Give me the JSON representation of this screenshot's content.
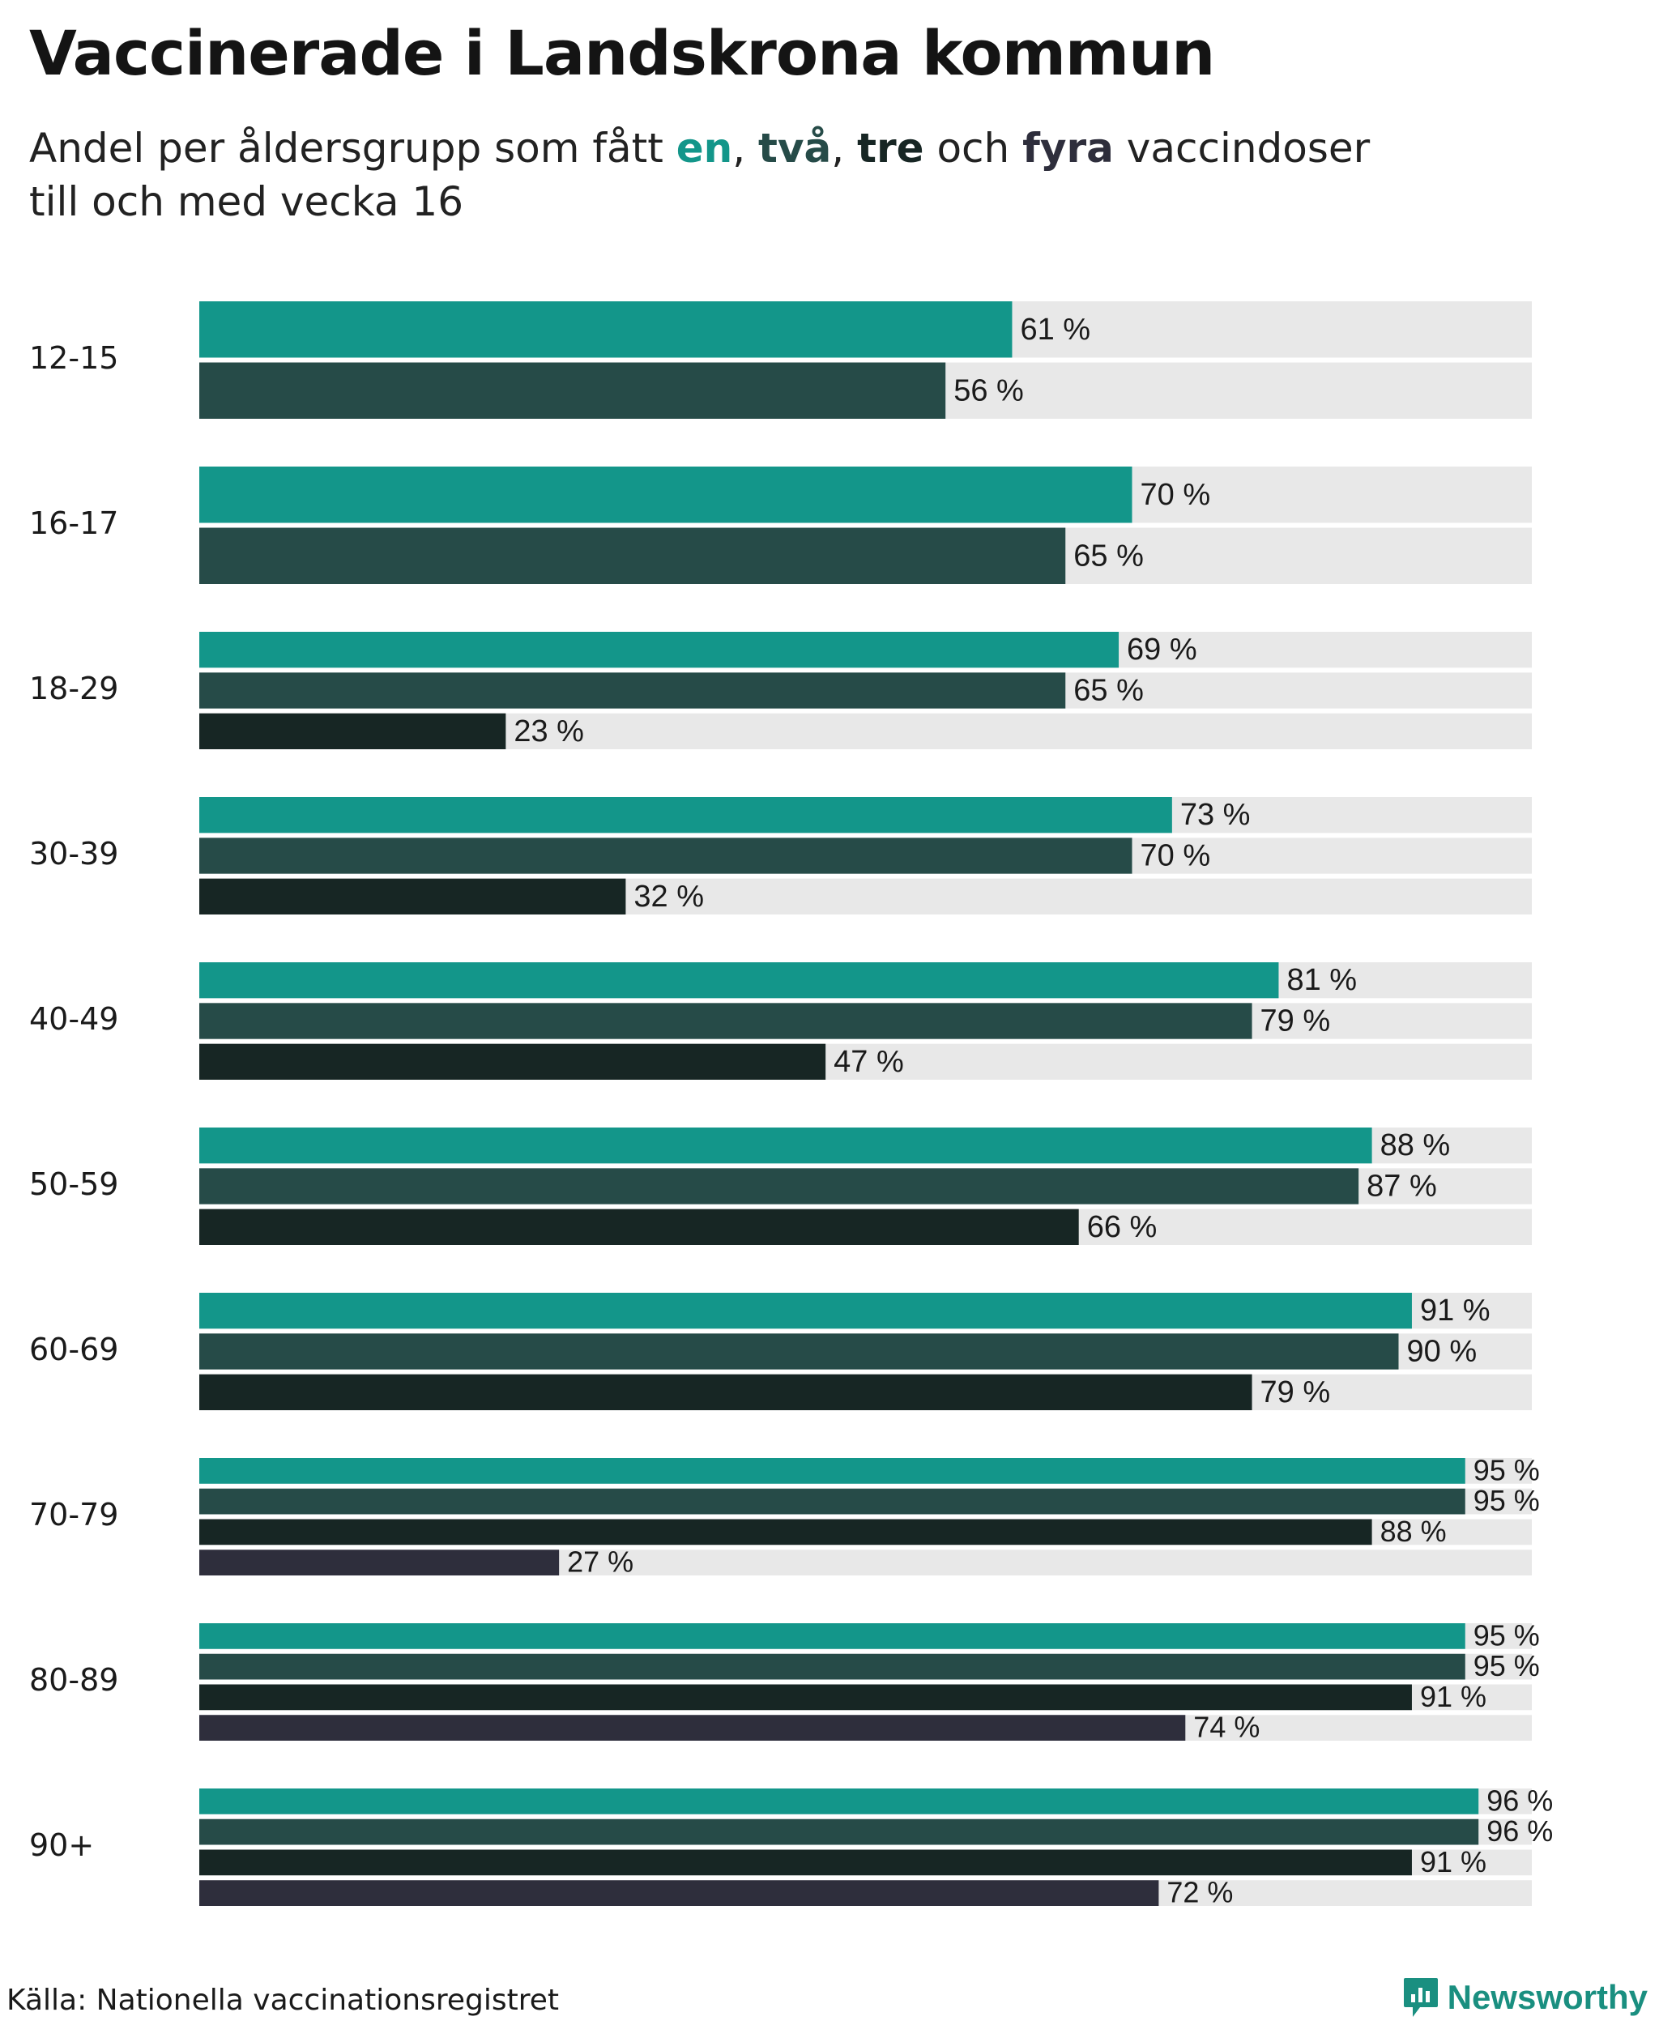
{
  "title": "Vaccinerade i Landskrona kommun",
  "subtitle": {
    "prefix": "Andel per åldersgrupp som fått ",
    "k1": "en",
    "sep1": ", ",
    "k2": "två",
    "sep2": ", ",
    "k3": "tre",
    "sep3": " och ",
    "k4": "fyra",
    "suffix": " vaccindoser",
    "line2": "till och med vecka 16"
  },
  "source": "Källa: Nationella vaccinationsregistret",
  "brand": {
    "name": "Newsworthy",
    "icon": "newsworthy-logo-icon",
    "color": "#1a8f80"
  },
  "colors": {
    "en": "#13968a",
    "två": "#264b48",
    "tre": "#172624",
    "fyra": "#2e2e3c",
    "track": "#e8e8e8"
  },
  "chart_data": {
    "type": "bar",
    "orientation": "horizontal",
    "value_suffix": " %",
    "xlim": [
      0,
      100
    ],
    "grid": false,
    "legend": "inline in subtitle",
    "categories": [
      "12-15",
      "16-17",
      "18-29",
      "30-39",
      "40-49",
      "50-59",
      "60-69",
      "70-79",
      "80-89",
      "90+"
    ],
    "series": [
      {
        "name": "en",
        "color": "#13968a",
        "values": [
          61,
          70,
          69,
          73,
          81,
          88,
          91,
          95,
          95,
          96
        ]
      },
      {
        "name": "två",
        "color": "#264b48",
        "values": [
          56,
          65,
          65,
          70,
          79,
          87,
          90,
          95,
          95,
          96
        ]
      },
      {
        "name": "tre",
        "color": "#172624",
        "values": [
          null,
          null,
          23,
          32,
          47,
          66,
          79,
          88,
          91,
          91
        ]
      },
      {
        "name": "fyra",
        "color": "#2e2e3c",
        "values": [
          null,
          null,
          null,
          null,
          null,
          null,
          null,
          27,
          74,
          72
        ]
      }
    ]
  }
}
